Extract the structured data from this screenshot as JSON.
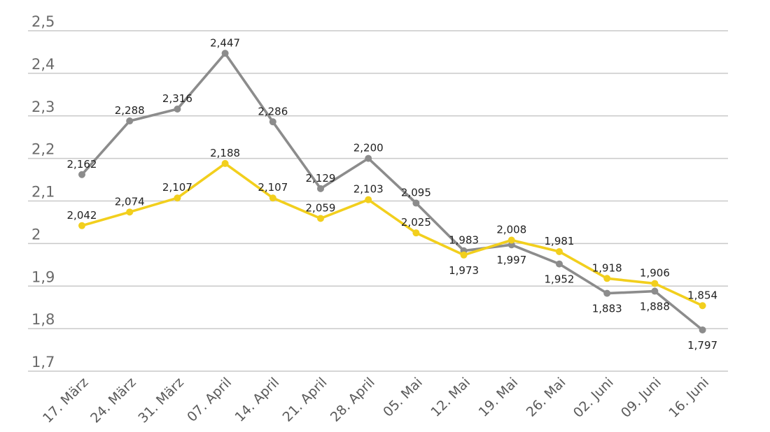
{
  "chart_data": {
    "type": "line",
    "title": "",
    "xlabel": "",
    "ylabel": "",
    "ylim": [
      1.7,
      2.5
    ],
    "yticks": [
      1.7,
      1.8,
      1.9,
      2.0,
      2.1,
      2.2,
      2.3,
      2.4,
      2.5
    ],
    "ytick_labels": [
      "1,7",
      "1,8",
      "1,9",
      "2",
      "2,1",
      "2,2",
      "2,3",
      "2,4",
      "2,5"
    ],
    "grid": true,
    "legend": "none",
    "categories": [
      "17. März",
      "24. März",
      "31. März",
      "07. April",
      "14. April",
      "21. April",
      "28. April",
      "05. Mai",
      "12. Mai",
      "19. Mai",
      "26. Mai",
      "02. Juni",
      "09. Juni",
      "16. Juni"
    ],
    "series": [
      {
        "color": "#8c8c8c",
        "values": [
          2.162,
          2.288,
          2.316,
          2.447,
          2.286,
          2.129,
          2.2,
          2.095,
          1.983,
          1.997,
          1.952,
          1.883,
          1.888,
          1.797
        ],
        "labels": [
          "2,162",
          "2,288",
          "2,316",
          "2,447",
          "2,286",
          "2,129",
          "2,200",
          "2,095",
          "1,983",
          "1,997",
          "1,952",
          "1,883",
          "1,888",
          "1,797"
        ]
      },
      {
        "color": "#f2cf1d",
        "values": [
          2.042,
          2.074,
          2.107,
          2.188,
          2.107,
          2.059,
          2.103,
          2.025,
          1.973,
          2.008,
          1.981,
          1.918,
          1.906,
          1.854
        ],
        "labels": [
          "2,042",
          "2,074",
          "2,107",
          "2,188",
          "2,107",
          "2,059",
          "2,103",
          "2,025",
          "1,973",
          "2,008",
          "1,981",
          "1,918",
          "1,906",
          "1,854"
        ]
      }
    ]
  }
}
